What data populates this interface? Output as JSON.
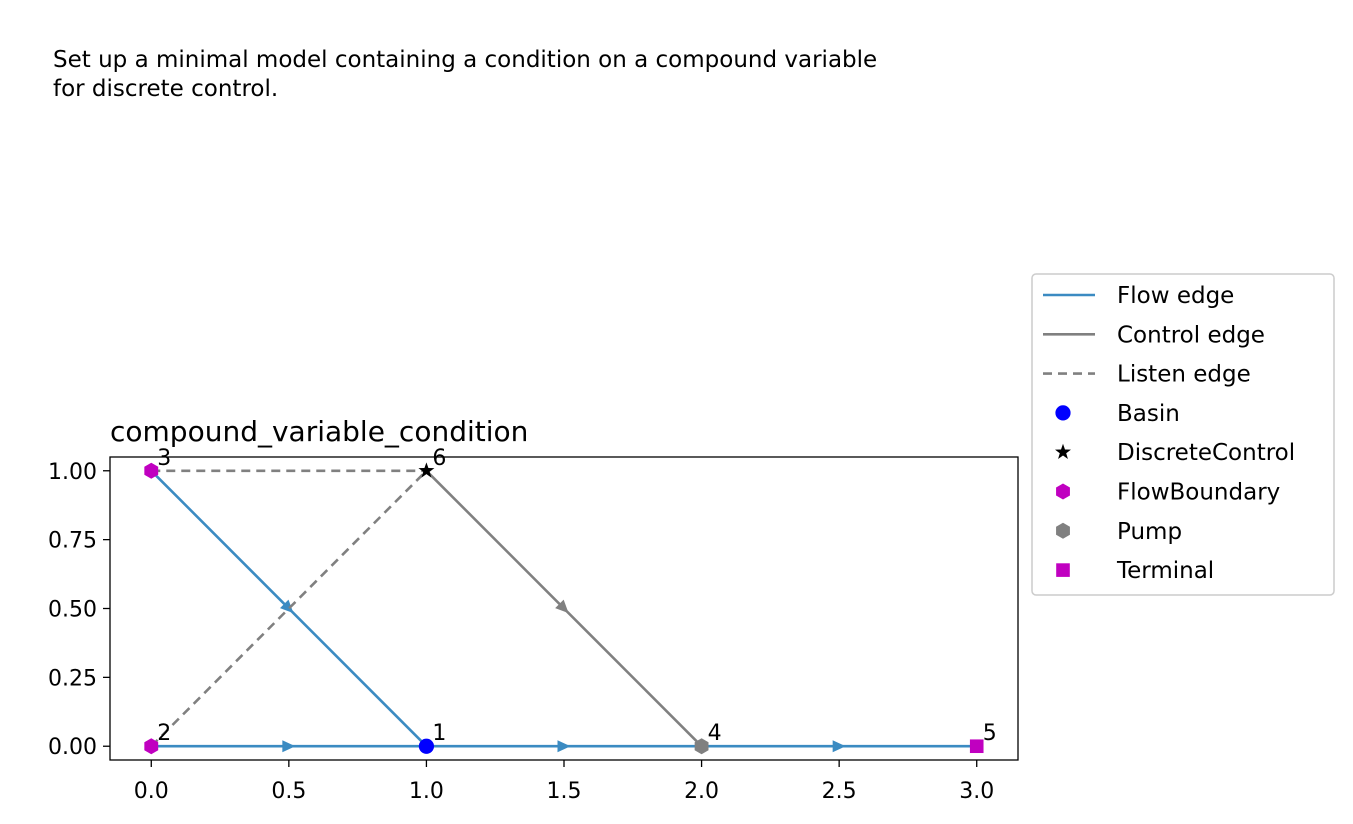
{
  "description_line1": "Set up a minimal model containing a condition on a compound variable",
  "description_line2": "for discrete control.",
  "chart_data": {
    "type": "scatter",
    "title": "compound_variable_condition",
    "xlabel": "",
    "ylabel": "",
    "xlim": [
      -0.15,
      3.15
    ],
    "ylim": [
      -0.05,
      1.05
    ],
    "xticks": [
      "0.0",
      "0.5",
      "1.0",
      "1.5",
      "2.0",
      "2.5",
      "3.0"
    ],
    "xtick_values": [
      0,
      0.5,
      1,
      1.5,
      2,
      2.5,
      3
    ],
    "yticks": [
      "0.00",
      "0.25",
      "0.50",
      "0.75",
      "1.00"
    ],
    "ytick_values": [
      0,
      0.25,
      0.5,
      0.75,
      1.0
    ],
    "grid": false,
    "legend_position": "outside right",
    "nodes": [
      {
        "id": "1",
        "type": "Basin",
        "x": 1,
        "y": 0
      },
      {
        "id": "2",
        "type": "FlowBoundary",
        "x": 0,
        "y": 0
      },
      {
        "id": "3",
        "type": "FlowBoundary",
        "x": 0,
        "y": 1
      },
      {
        "id": "4",
        "type": "Pump",
        "x": 2,
        "y": 0
      },
      {
        "id": "5",
        "type": "Terminal",
        "x": 3,
        "y": 0
      },
      {
        "id": "6",
        "type": "DiscreteControl",
        "x": 1,
        "y": 1
      }
    ],
    "edges": [
      {
        "kind": "Flow edge",
        "from": "2",
        "to": "1"
      },
      {
        "kind": "Flow edge",
        "from": "3",
        "to": "1"
      },
      {
        "kind": "Flow edge",
        "from": "1",
        "to": "4"
      },
      {
        "kind": "Flow edge",
        "from": "4",
        "to": "5"
      },
      {
        "kind": "Control edge",
        "from": "6",
        "to": "4"
      },
      {
        "kind": "Listen edge",
        "from": "2",
        "to": "6"
      },
      {
        "kind": "Listen edge",
        "from": "3",
        "to": "6"
      }
    ],
    "legend": [
      {
        "label": "Flow edge",
        "kind": "line",
        "color": "#3b8bc2",
        "dash": false
      },
      {
        "label": "Control edge",
        "kind": "line",
        "color": "#808080",
        "dash": false
      },
      {
        "label": "Listen edge",
        "kind": "line",
        "color": "#808080",
        "dash": true
      },
      {
        "label": "Basin",
        "kind": "marker",
        "marker": "circle",
        "color": "#0000ff"
      },
      {
        "label": "DiscreteControl",
        "kind": "marker",
        "marker": "star",
        "color": "#000000"
      },
      {
        "label": "FlowBoundary",
        "kind": "marker",
        "marker": "hexagon",
        "color": "#c000c0"
      },
      {
        "label": "Pump",
        "kind": "marker",
        "marker": "hexagon",
        "color": "#808080"
      },
      {
        "label": "Terminal",
        "kind": "marker",
        "marker": "square",
        "color": "#c000c0"
      }
    ],
    "colors": {
      "flow": "#3b8bc2",
      "control": "#808080",
      "listen": "#808080"
    },
    "node_styles": {
      "Basin": {
        "marker": "circle",
        "color": "#0000ff"
      },
      "DiscreteControl": {
        "marker": "star",
        "color": "#000000"
      },
      "FlowBoundary": {
        "marker": "hexagon",
        "color": "#c000c0"
      },
      "Pump": {
        "marker": "hexagon",
        "color": "#808080"
      },
      "Terminal": {
        "marker": "square",
        "color": "#c000c0"
      }
    }
  }
}
